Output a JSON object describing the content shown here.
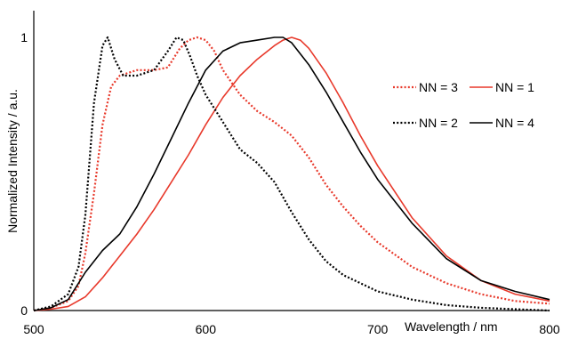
{
  "chart_data": {
    "type": "line",
    "title": "",
    "xlabel": "Wavelength / nm",
    "ylabel": "Normalized Intensity / a.u.",
    "xlim": [
      500,
      800
    ],
    "ylim": [
      0,
      1
    ],
    "x_ticks": [
      "500",
      "600",
      "700",
      "800"
    ],
    "y_ticks": [
      "0",
      "1"
    ],
    "grid": false,
    "legend_position": "right",
    "series": [
      {
        "name": "NN = 3",
        "color": "#e8392b",
        "dash": "dotted",
        "x": [
          500,
          510,
          520,
          526,
          530,
          535,
          540,
          545,
          550,
          560,
          570,
          578,
          585,
          590,
          595,
          600,
          605,
          610,
          620,
          630,
          640,
          650,
          660,
          670,
          680,
          690,
          700,
          720,
          740,
          760,
          780,
          800
        ],
        "y": [
          0.0,
          0.01,
          0.035,
          0.09,
          0.21,
          0.43,
          0.68,
          0.82,
          0.86,
          0.88,
          0.88,
          0.89,
          0.96,
          0.99,
          1.0,
          0.99,
          0.95,
          0.88,
          0.79,
          0.73,
          0.69,
          0.64,
          0.56,
          0.46,
          0.38,
          0.31,
          0.25,
          0.16,
          0.1,
          0.06,
          0.035,
          0.025
        ]
      },
      {
        "name": "NN = 1",
        "color": "#e8392b",
        "dash": "solid",
        "x": [
          500,
          510,
          520,
          530,
          540,
          550,
          560,
          570,
          580,
          590,
          600,
          610,
          620,
          630,
          640,
          645,
          650,
          655,
          660,
          670,
          680,
          690,
          700,
          720,
          740,
          760,
          780,
          800
        ],
        "y": [
          0.0,
          0.005,
          0.015,
          0.05,
          0.12,
          0.2,
          0.28,
          0.37,
          0.47,
          0.57,
          0.68,
          0.78,
          0.86,
          0.92,
          0.97,
          0.99,
          1.0,
          0.99,
          0.96,
          0.87,
          0.76,
          0.64,
          0.53,
          0.34,
          0.2,
          0.11,
          0.06,
          0.035
        ]
      },
      {
        "name": "NN = 2",
        "color": "#000000",
        "dash": "dotted",
        "x": [
          500,
          510,
          520,
          526,
          530,
          535,
          540,
          543,
          547,
          552,
          560,
          570,
          578,
          583,
          587,
          591,
          595,
          600,
          610,
          620,
          630,
          640,
          650,
          660,
          670,
          680,
          700,
          720,
          740,
          760,
          780,
          800
        ],
        "y": [
          0.0,
          0.015,
          0.06,
          0.16,
          0.35,
          0.76,
          0.97,
          1.0,
          0.92,
          0.86,
          0.86,
          0.88,
          0.95,
          1.0,
          0.99,
          0.93,
          0.86,
          0.79,
          0.69,
          0.59,
          0.54,
          0.47,
          0.36,
          0.26,
          0.18,
          0.13,
          0.07,
          0.04,
          0.02,
          0.01,
          0.005,
          0.0
        ]
      },
      {
        "name": "NN = 4",
        "color": "#000000",
        "dash": "solid",
        "x": [
          500,
          510,
          520,
          530,
          540,
          550,
          560,
          570,
          580,
          590,
          600,
          610,
          620,
          630,
          640,
          645,
          650,
          660,
          670,
          680,
          690,
          700,
          720,
          740,
          760,
          780,
          800
        ],
        "y": [
          0.0,
          0.01,
          0.04,
          0.14,
          0.22,
          0.28,
          0.38,
          0.5,
          0.63,
          0.76,
          0.88,
          0.95,
          0.98,
          0.99,
          1.0,
          1.0,
          0.98,
          0.9,
          0.8,
          0.69,
          0.58,
          0.48,
          0.32,
          0.19,
          0.11,
          0.07,
          0.04
        ]
      }
    ]
  }
}
